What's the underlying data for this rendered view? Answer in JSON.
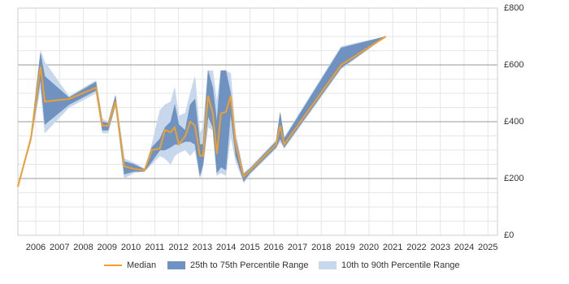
{
  "chart_data": {
    "type": "line",
    "x": [
      2005.25,
      2005.8,
      2006.2,
      2006.38,
      2007.4,
      2008.53,
      2008.8,
      2009.04,
      2009.35,
      2009.72,
      2010.13,
      2010.57,
      2010.88,
      2011.22,
      2011.43,
      2011.67,
      2011.84,
      2012.01,
      2012.28,
      2012.49,
      2012.69,
      2012.9,
      2013.03,
      2013.24,
      2013.44,
      2013.61,
      2013.78,
      2013.99,
      2014.19,
      2014.4,
      2014.74,
      2015.01,
      2016.1,
      2016.27,
      2016.44,
      2018.83,
      2020.71
    ],
    "series": [
      {
        "name": "Median",
        "color": "#f0a02a",
        "values": [
          171,
          343,
          594,
          471,
          480,
          520,
          386,
          386,
          471,
          243,
          234,
          229,
          300,
          306,
          371,
          363,
          380,
          320,
          349,
          400,
          386,
          280,
          280,
          491,
          429,
          286,
          429,
          434,
          491,
          320,
          206,
          229,
          320,
          386,
          320,
          600,
          700
        ]
      },
      {
        "name": "25th to 75th Percentile Range",
        "color": "#6f92c0",
        "lower": [
          171,
          335,
          550,
          390,
          460,
          510,
          370,
          370,
          460,
          215,
          225,
          225,
          260,
          300,
          300,
          310,
          320,
          320,
          330,
          330,
          320,
          210,
          250,
          420,
          380,
          220,
          240,
          230,
          430,
          280,
          190,
          220,
          310,
          340,
          310,
          590,
          700
        ],
        "upper": [
          171,
          350,
          640,
          560,
          485,
          540,
          400,
          395,
          490,
          260,
          250,
          232,
          310,
          340,
          380,
          400,
          460,
          390,
          370,
          460,
          480,
          320,
          320,
          580,
          520,
          400,
          580,
          580,
          500,
          340,
          215,
          235,
          330,
          430,
          340,
          660,
          700
        ]
      },
      {
        "name": "10th to 90th Percentile Range",
        "color": "#c8d8ec",
        "lower": [
          171,
          330,
          520,
          360,
          450,
          500,
          360,
          360,
          455,
          200,
          220,
          225,
          250,
          280,
          270,
          250,
          280,
          290,
          300,
          280,
          300,
          200,
          240,
          380,
          370,
          210,
          220,
          210,
          350,
          260,
          185,
          215,
          305,
          330,
          305,
          585,
          700
        ],
        "upper": [
          171,
          355,
          650,
          610,
          490,
          545,
          410,
          400,
          495,
          270,
          255,
          235,
          320,
          440,
          460,
          470,
          520,
          420,
          430,
          500,
          560,
          360,
          380,
          580,
          580,
          470,
          580,
          580,
          570,
          360,
          220,
          240,
          335,
          435,
          345,
          665,
          700
        ]
      }
    ],
    "xlim": [
      2005.25,
      2025.4
    ],
    "xticks": [
      2006,
      2007,
      2008,
      2009,
      2010,
      2011,
      2012,
      2013,
      2014,
      2015,
      2016,
      2017,
      2018,
      2019,
      2020,
      2021,
      2022,
      2023,
      2024,
      2025
    ],
    "ylim": [
      0,
      800
    ],
    "yticks": [
      {
        "value": 0,
        "label": "£0"
      },
      {
        "value": 200,
        "label": "£200"
      },
      {
        "value": 400,
        "label": "£400"
      },
      {
        "value": 600,
        "label": "£600"
      },
      {
        "value": 800,
        "label": "£800"
      }
    ],
    "yminorticks": [
      50,
      100,
      150,
      250,
      300,
      350,
      450,
      500,
      550,
      650,
      700,
      750
    ],
    "grid": true,
    "legend": "bottom"
  }
}
